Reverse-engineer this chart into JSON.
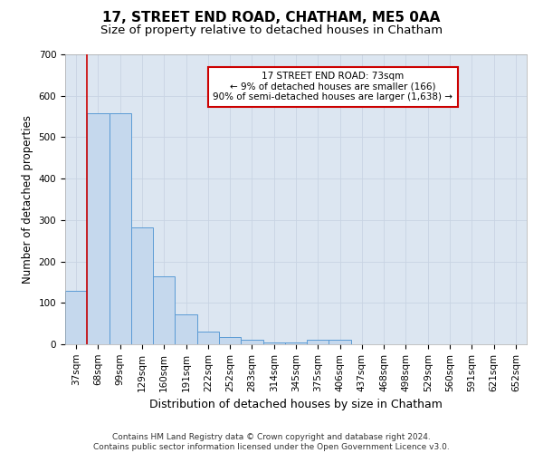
{
  "title": "17, STREET END ROAD, CHATHAM, ME5 0AA",
  "subtitle": "Size of property relative to detached houses in Chatham",
  "xlabel": "Distribution of detached houses by size in Chatham",
  "ylabel": "Number of detached properties",
  "categories": [
    "37sqm",
    "68sqm",
    "99sqm",
    "129sqm",
    "160sqm",
    "191sqm",
    "222sqm",
    "252sqm",
    "283sqm",
    "314sqm",
    "345sqm",
    "375sqm",
    "406sqm",
    "437sqm",
    "468sqm",
    "498sqm",
    "529sqm",
    "560sqm",
    "591sqm",
    "621sqm",
    "652sqm"
  ],
  "values": [
    128,
    557,
    557,
    283,
    165,
    72,
    30,
    18,
    10,
    5,
    5,
    10,
    10,
    0,
    0,
    0,
    0,
    0,
    0,
    0,
    0
  ],
  "bar_color": "#c5d8ed",
  "bar_edge_color": "#5b9bd5",
  "annotation_text_line1": "17 STREET END ROAD: 73sqm",
  "annotation_text_line2": "← 9% of detached houses are smaller (166)",
  "annotation_text_line3": "90% of semi-detached houses are larger (1,638) →",
  "annotation_box_color": "#ffffff",
  "annotation_box_edge_color": "#cc0000",
  "red_line_color": "#cc0000",
  "red_line_bar_index": 1,
  "ylim": [
    0,
    700
  ],
  "yticks": [
    0,
    100,
    200,
    300,
    400,
    500,
    600,
    700
  ],
  "grid_color": "#c8d4e3",
  "background_color": "#dce6f1",
  "footnote_line1": "Contains HM Land Registry data © Crown copyright and database right 2024.",
  "footnote_line2": "Contains public sector information licensed under the Open Government Licence v3.0.",
  "title_fontsize": 11,
  "subtitle_fontsize": 9.5,
  "xlabel_fontsize": 9,
  "ylabel_fontsize": 8.5,
  "tick_fontsize": 7.5,
  "annotation_fontsize": 7.5,
  "footnote_fontsize": 6.5
}
